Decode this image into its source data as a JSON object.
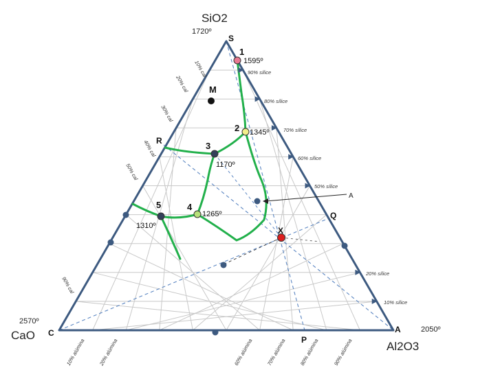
{
  "components": {
    "top": {
      "formula": "SiO2",
      "temp": "1720º",
      "vertex": "S"
    },
    "left": {
      "formula": "CaO",
      "temp": "2570º",
      "vertex": "C"
    },
    "right": {
      "formula": "Al2O3",
      "temp": "2050º",
      "vertex": "A"
    }
  },
  "colors": {
    "frame": "#3d5a80",
    "grid": "#c8c8c8",
    "boundary": "#22b04b",
    "tieline": "#5b86c2",
    "point": "#34405a",
    "p1": "#e87a92",
    "p2": "#f2ef8a",
    "p4": "#b7e07a",
    "px": "#dd1f1f"
  },
  "points": [
    {
      "id": "1",
      "label": "1",
      "temp": "1595º",
      "color": "#e87a92"
    },
    {
      "id": "2",
      "label": "2",
      "temp": "1345º",
      "color": "#f2ef8a"
    },
    {
      "id": "3",
      "label": "3",
      "temp": "1170º",
      "color": "#34405a"
    },
    {
      "id": "4",
      "label": "4",
      "temp": "1265º",
      "color": "#b7e07a"
    },
    {
      "id": "5",
      "label": "5",
      "temp": "1310º",
      "color": "#34405a"
    }
  ],
  "markers": {
    "M": "M",
    "R": "R",
    "Q": "Q",
    "P": "P",
    "X": "X",
    "A_note": "A"
  },
  "scales": {
    "silice": [
      "90% sílice",
      "80% sílice",
      "70% sílice",
      "60% sílice",
      "50% sílice",
      "20% sílice",
      "10% sílice"
    ],
    "cal": [
      "10% cal",
      "20% cal",
      "30% cal",
      "40% cal",
      "50% cal",
      "90% cal"
    ],
    "alumina": [
      "10% alúmina",
      "20% alúmina",
      "60% alúmina",
      "70% alúmina",
      "80% alúmina",
      "90% alúmina"
    ]
  }
}
